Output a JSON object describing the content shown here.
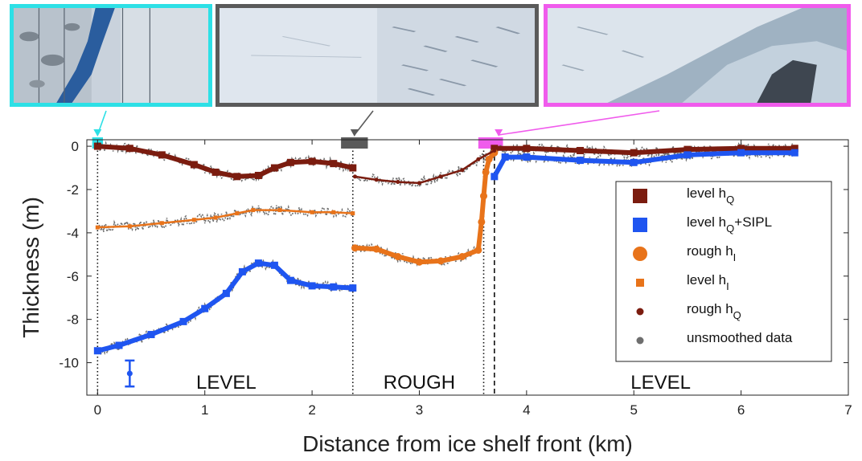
{
  "chart_data": {
    "type": "scatter",
    "xlabel": "Distance from ice shelf front (km)",
    "ylabel": "Thickness (m)",
    "xlim": [
      -0.1,
      7
    ],
    "ylim": [
      -11.5,
      0.3
    ],
    "xticks": [
      "0",
      "1",
      "2",
      "3",
      "4",
      "5",
      "6",
      "7"
    ],
    "yticks": [
      "0",
      "-2",
      "-4",
      "-6",
      "-8",
      "-10"
    ],
    "grid": false,
    "legend_position": "right",
    "region_labels": [
      {
        "text": "LEVEL",
        "x": 1.2
      },
      {
        "text": "ROUGH",
        "x": 3.0
      },
      {
        "text": "LEVEL",
        "x": 5.25
      }
    ],
    "boundaries": [
      {
        "x": 0.0,
        "style": "dotted"
      },
      {
        "x": 2.38,
        "style": "dotted"
      },
      {
        "x": 3.6,
        "style": "dotted"
      },
      {
        "x": 3.7,
        "style": "dashed"
      }
    ],
    "image_markers": [
      {
        "x": [
          -0.05,
          0.05
        ],
        "color": "#2de0e6"
      },
      {
        "x": [
          2.27,
          2.52
        ],
        "color": "#5a5a5a"
      },
      {
        "x": [
          3.55,
          3.78
        ],
        "color": "#f05bec"
      }
    ],
    "error_bar": {
      "x": 0.3,
      "y": -10.5,
      "low": -11.1,
      "high": -9.9,
      "color": "#1f55f0"
    },
    "legend": [
      {
        "label": "level h",
        "sub": "Q",
        "suffix": "",
        "marker": "square-large",
        "color": "#7b1c0f"
      },
      {
        "label": "level h",
        "sub": "Q",
        "suffix": "+SIPL",
        "marker": "square-large",
        "color": "#1f55f0"
      },
      {
        "label": "rough h",
        "sub": "I",
        "suffix": "",
        "marker": "circle-large",
        "color": "#e8731a"
      },
      {
        "label": "level h",
        "sub": "I",
        "suffix": "",
        "marker": "square-small",
        "color": "#e8731a"
      },
      {
        "label": "rough h",
        "sub": "Q",
        "suffix": "",
        "marker": "circle-small",
        "color": "#7b1c0f"
      },
      {
        "label": "unsmoothed data",
        "sub": "",
        "suffix": "",
        "marker": "circle-small",
        "color": "#6e6e6e"
      }
    ],
    "series": [
      {
        "name": "level hQ",
        "marker": "square",
        "color": "#7b1c0f",
        "x": [
          0,
          0.3,
          0.6,
          0.9,
          1.1,
          1.3,
          1.5,
          1.65,
          1.8,
          2.0,
          2.2,
          2.38,
          3.7,
          4.0,
          4.5,
          5.0,
          5.5,
          6.0,
          6.5
        ],
        "y": [
          0,
          -0.1,
          -0.4,
          -0.85,
          -1.2,
          -1.4,
          -1.35,
          -1.0,
          -0.75,
          -0.7,
          -0.8,
          -1.0,
          -0.1,
          -0.1,
          -0.2,
          -0.3,
          -0.15,
          -0.1,
          -0.1
        ]
      },
      {
        "name": "level hQ+SIPL",
        "marker": "square",
        "color": "#1f55f0",
        "x": [
          0,
          0.2,
          0.5,
          0.8,
          1.0,
          1.2,
          1.35,
          1.5,
          1.65,
          1.8,
          2.0,
          2.2,
          2.38,
          3.7,
          3.8,
          4.0,
          4.5,
          5.0,
          5.5,
          6.0,
          6.5
        ],
        "y": [
          -9.45,
          -9.2,
          -8.7,
          -8.1,
          -7.5,
          -6.8,
          -5.8,
          -5.4,
          -5.5,
          -6.2,
          -6.45,
          -6.5,
          -6.55,
          -1.4,
          -0.5,
          -0.5,
          -0.65,
          -0.75,
          -0.4,
          -0.3,
          -0.3
        ]
      },
      {
        "name": "rough hI",
        "marker": "circle",
        "color": "#e8731a",
        "x": [
          2.4,
          2.6,
          2.8,
          3.0,
          3.2,
          3.4,
          3.55,
          3.58,
          3.6,
          3.62,
          3.65,
          3.7
        ],
        "y": [
          -4.7,
          -4.75,
          -5.1,
          -5.35,
          -5.3,
          -5.1,
          -4.8,
          -3.5,
          -2.3,
          -1.2,
          -0.6,
          -0.3
        ]
      },
      {
        "name": "level hI",
        "marker": "square",
        "color": "#e8731a",
        "x": [
          0,
          0.3,
          0.6,
          0.9,
          1.1,
          1.3,
          1.45,
          1.7,
          2.0,
          2.2,
          2.38
        ],
        "y": [
          -3.75,
          -3.7,
          -3.55,
          -3.4,
          -3.3,
          -3.1,
          -2.95,
          -2.95,
          -3.05,
          -3.05,
          -3.1
        ]
      },
      {
        "name": "rough hQ",
        "marker": "circle",
        "color": "#7b1c0f",
        "x": [
          2.4,
          2.6,
          2.8,
          3.0,
          3.2,
          3.4,
          3.55,
          3.7
        ],
        "y": [
          -1.4,
          -1.55,
          -1.65,
          -1.7,
          -1.4,
          -1.1,
          -0.6,
          -0.2
        ]
      }
    ]
  }
}
